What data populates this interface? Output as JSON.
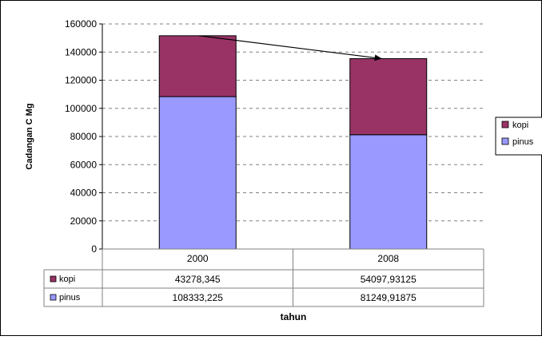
{
  "chart_data": {
    "type": "bar",
    "stacked": true,
    "categories": [
      "2000",
      "2008"
    ],
    "series": [
      {
        "name": "pinus",
        "values": [
          108333.225,
          81249.91875
        ],
        "labels": [
          "108333,225",
          "81249,91875"
        ],
        "color": "#9999ff"
      },
      {
        "name": "kopi",
        "values": [
          43278.345,
          54097.93125
        ],
        "labels": [
          "43278,345",
          "54097,93125"
        ],
        "color": "#993366"
      }
    ],
    "xlabel": "tahun",
    "ylabel": "Cadangan C Mg",
    "ylim": [
      0,
      160000
    ],
    "yticks": [
      "0",
      "20000",
      "40000",
      "60000",
      "80000",
      "100000",
      "120000",
      "140000",
      "160000"
    ],
    "grid": true,
    "legend": {
      "position": "right",
      "entries": [
        "kopi",
        "pinus"
      ]
    },
    "data_table": {
      "rows": [
        "kopi",
        "pinus"
      ]
    },
    "annotation": "arrow from top of 2000 bar to top of 2008 bar"
  }
}
